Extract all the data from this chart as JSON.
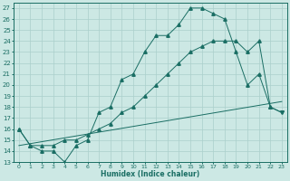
{
  "xlabel": "Humidex (Indice chaleur)",
  "bg_color": "#cce8e4",
  "line_color": "#1a6e64",
  "grid_color": "#aacfcb",
  "xlim": [
    -0.5,
    23.5
  ],
  "ylim": [
    13,
    27.5
  ],
  "xticks": [
    0,
    1,
    2,
    3,
    4,
    5,
    6,
    7,
    8,
    9,
    10,
    11,
    12,
    13,
    14,
    15,
    16,
    17,
    18,
    19,
    20,
    21,
    22,
    23
  ],
  "yticks": [
    13,
    14,
    15,
    16,
    17,
    18,
    19,
    20,
    21,
    22,
    23,
    24,
    25,
    26,
    27
  ],
  "line1_x": [
    0,
    1,
    2,
    3,
    4,
    5,
    6,
    7,
    8,
    9,
    10,
    11,
    12,
    13,
    14,
    15,
    16,
    17,
    18,
    19,
    20,
    21,
    22,
    23
  ],
  "line1_y": [
    16,
    14.5,
    14,
    14,
    13,
    14.5,
    15,
    17.5,
    18,
    20.5,
    21,
    23,
    24.5,
    24.5,
    25.5,
    27,
    27,
    26.5,
    26,
    23,
    20,
    21,
    18,
    17.5
  ],
  "line2_x": [
    0,
    1,
    2,
    3,
    4,
    5,
    6,
    7,
    8,
    9,
    10,
    11,
    12,
    13,
    14,
    15,
    16,
    17,
    18,
    19,
    20,
    21,
    22,
    23
  ],
  "line2_y": [
    16,
    14.5,
    14.5,
    14.5,
    15,
    15,
    15.5,
    16,
    16.5,
    17.5,
    18,
    19,
    20,
    21,
    22,
    23,
    23.5,
    24,
    24,
    24,
    23,
    24,
    18,
    17.5
  ],
  "line3_x": [
    0,
    23
  ],
  "line3_y": [
    14.5,
    18.5
  ],
  "marker1": "^",
  "marker2": "v"
}
